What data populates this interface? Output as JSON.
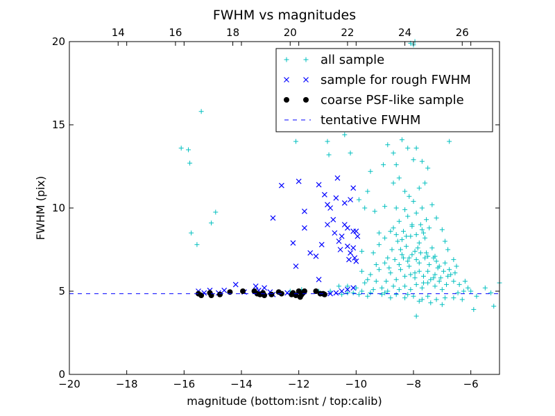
{
  "colors": {
    "all": "#00bfbf",
    "rough": "#0000ff",
    "coarse": "#000000",
    "fwhm_line": "#0000ff"
  },
  "chart_data": {
    "type": "scatter",
    "title": "FWHM vs magnitudes",
    "xlabel": "magnitude (bottom:isnt / top:calib)",
    "ylabel": "FWHM (pix)",
    "xlim": [
      -20,
      -5
    ],
    "ylim": [
      0,
      20
    ],
    "x_ticks": [
      -20,
      -18,
      -16,
      -14,
      -12,
      -10,
      -8,
      -6
    ],
    "x_tick_labels": [
      "−20",
      "−18",
      "−16",
      "−14",
      "−12",
      "−10",
      "−8",
      "−6"
    ],
    "y_ticks": [
      0,
      5,
      10,
      15,
      20
    ],
    "y_tick_labels": [
      "0",
      "5",
      "10",
      "15",
      "20"
    ],
    "top_axis": {
      "offset": 32.3,
      "ticks": [
        14,
        16,
        18,
        20,
        22,
        24,
        26
      ],
      "tick_labels": [
        "14",
        "16",
        "18",
        "20",
        "22",
        "24",
        "26"
      ]
    },
    "legend_position": "top-right",
    "grid": false,
    "tentative_fwhm": 4.85,
    "series": [
      {
        "name": "all sample",
        "marker": "+",
        "points": [
          [
            -16.1,
            13.6
          ],
          [
            -15.85,
            13.5
          ],
          [
            -15.8,
            12.7
          ],
          [
            -15.75,
            8.5
          ],
          [
            -15.55,
            7.8
          ],
          [
            -15.4,
            15.8
          ],
          [
            -15.05,
            9.1
          ],
          [
            -14.9,
            9.75
          ],
          [
            -12.1,
            14.0
          ],
          [
            -11.0,
            14.0
          ],
          [
            -10.95,
            13.2
          ],
          [
            -10.4,
            14.4
          ],
          [
            -10.2,
            13.3
          ],
          [
            -6.75,
            14.0
          ],
          [
            -8.0,
            19.8
          ],
          [
            -8.1,
            19.9
          ],
          [
            -7.95,
            20.0
          ],
          [
            -5.9,
            3.9
          ],
          [
            -5.2,
            4.1
          ],
          [
            -5.0,
            5.5
          ],
          [
            -7.9,
            3.5
          ],
          [
            -12.3,
            5.0
          ],
          [
            -11.9,
            5.1
          ],
          [
            -11.3,
            5.0
          ],
          [
            -10.6,
            5.3
          ],
          [
            -10.3,
            5.3
          ],
          [
            -10.0,
            5.2
          ],
          [
            -10.3,
            4.9
          ],
          [
            -9.9,
            4.8
          ],
          [
            -9.6,
            4.7
          ],
          [
            -9.4,
            5.1
          ],
          [
            -9.1,
            4.8
          ],
          [
            -9.3,
            6.6
          ],
          [
            -9.35,
            9.8
          ],
          [
            -9.0,
            4.9
          ],
          [
            -8.6,
            4.8
          ],
          [
            -8.3,
            4.6
          ],
          [
            -8.0,
            4.7
          ],
          [
            -7.7,
            4.5
          ],
          [
            -7.4,
            4.3
          ],
          [
            -7.0,
            4.2
          ],
          [
            -6.6,
            4.6
          ],
          [
            -6.3,
            4.5
          ],
          [
            -6.0,
            5.0
          ],
          [
            -5.8,
            4.7
          ],
          [
            -5.5,
            5.2
          ],
          [
            -5.3,
            4.9
          ],
          [
            -9.6,
            11.0
          ],
          [
            -9.5,
            12.2
          ],
          [
            -9.9,
            10.5
          ],
          [
            -9.7,
            10.0
          ],
          [
            -9.8,
            7.4
          ],
          [
            -9.8,
            6.2
          ],
          [
            -9.6,
            5.7
          ],
          [
            -9.2,
            8.5
          ],
          [
            -9.0,
            10.1
          ],
          [
            -9.05,
            12.6
          ],
          [
            -8.9,
            13.8
          ],
          [
            -8.7,
            13.3
          ],
          [
            -8.6,
            12.6
          ],
          [
            -8.4,
            14.1
          ],
          [
            -8.2,
            13.6
          ],
          [
            -8.0,
            12.9
          ],
          [
            -7.9,
            13.6
          ],
          [
            -7.7,
            12.8
          ],
          [
            -7.5,
            12.4
          ],
          [
            -8.7,
            11.5
          ],
          [
            -8.5,
            11.8
          ],
          [
            -8.3,
            11.0
          ],
          [
            -8.15,
            10.7
          ],
          [
            -7.8,
            11.2
          ],
          [
            -7.6,
            11.5
          ],
          [
            -7.35,
            10.2
          ],
          [
            -7.2,
            9.4
          ],
          [
            -7.0,
            8.7
          ],
          [
            -6.9,
            8.0
          ],
          [
            -6.8,
            7.5
          ],
          [
            -6.6,
            6.9
          ],
          [
            -6.5,
            6.5
          ],
          [
            -6.7,
            6.0
          ],
          [
            -6.85,
            5.4
          ],
          [
            -7.1,
            5.6
          ],
          [
            -9.1,
            5.2
          ],
          [
            -8.95,
            5.6
          ],
          [
            -8.8,
            6.1
          ],
          [
            -8.6,
            5.7
          ],
          [
            -8.45,
            6.3
          ],
          [
            -8.3,
            5.9
          ],
          [
            -8.15,
            6.5
          ],
          [
            -7.95,
            6.1
          ],
          [
            -7.8,
            6.7
          ],
          [
            -7.65,
            5.5
          ],
          [
            -7.5,
            6.2
          ],
          [
            -7.3,
            5.8
          ],
          [
            -7.15,
            6.4
          ],
          [
            -8.9,
            7.0
          ],
          [
            -8.75,
            7.5
          ],
          [
            -8.55,
            8.0
          ],
          [
            -8.4,
            7.2
          ],
          [
            -8.25,
            7.7
          ],
          [
            -8.1,
            8.3
          ],
          [
            -7.95,
            7.4
          ],
          [
            -7.8,
            7.9
          ],
          [
            -7.65,
            8.5
          ],
          [
            -7.5,
            7.1
          ],
          [
            -7.35,
            7.6
          ],
          [
            -7.2,
            6.8
          ],
          [
            -8.7,
            8.8
          ],
          [
            -8.5,
            9.2
          ],
          [
            -8.35,
            8.6
          ],
          [
            -8.2,
            9.5
          ],
          [
            -8.05,
            8.9
          ],
          [
            -7.9,
            9.7
          ],
          [
            -7.75,
            9.0
          ],
          [
            -7.6,
            8.2
          ],
          [
            -7.45,
            8.8
          ],
          [
            -8.6,
            10.0
          ],
          [
            -8.3,
            9.9
          ],
          [
            -8.0,
            10.4
          ],
          [
            -7.7,
            10.0
          ],
          [
            -9.2,
            6.3
          ],
          [
            -9.0,
            6.7
          ],
          [
            -8.85,
            6.4
          ],
          [
            -8.65,
            6.9
          ],
          [
            -8.5,
            6.6
          ],
          [
            -8.35,
            7.0
          ],
          [
            -8.2,
            6.8
          ],
          [
            -8.05,
            7.2
          ],
          [
            -7.9,
            6.9
          ],
          [
            -7.75,
            7.3
          ],
          [
            -7.6,
            7.0
          ],
          [
            -7.45,
            6.6
          ],
          [
            -7.3,
            7.0
          ],
          [
            -7.1,
            6.5
          ],
          [
            -6.95,
            6.2
          ],
          [
            -6.8,
            5.9
          ],
          [
            -6.6,
            5.6
          ],
          [
            -6.4,
            5.4
          ],
          [
            -6.2,
            5.6
          ],
          [
            -6.1,
            5.2
          ],
          [
            -7.0,
            5.1
          ],
          [
            -7.25,
            5.3
          ],
          [
            -7.5,
            5.5
          ],
          [
            -7.7,
            5.2
          ],
          [
            -7.9,
            5.4
          ],
          [
            -8.1,
            5.1
          ],
          [
            -8.3,
            5.3
          ],
          [
            -8.5,
            5.1
          ],
          [
            -8.7,
            5.3
          ],
          [
            -8.9,
            5.0
          ],
          [
            -9.3,
            5.6
          ],
          [
            -9.5,
            6.0
          ],
          [
            -9.7,
            5.5
          ],
          [
            -9.4,
            7.3
          ],
          [
            -9.2,
            7.8
          ],
          [
            -9.0,
            8.2
          ],
          [
            -8.8,
            8.6
          ],
          [
            -8.1,
            6.0
          ],
          [
            -7.95,
            5.8
          ],
          [
            -7.8,
            6.2
          ],
          [
            -7.65,
            5.9
          ],
          [
            -7.4,
            5.7
          ],
          [
            -7.25,
            6.0
          ],
          [
            -7.05,
            5.8
          ],
          [
            -6.9,
            6.7
          ],
          [
            -6.75,
            6.3
          ],
          [
            -6.55,
            6.1
          ],
          [
            -6.45,
            4.9
          ],
          [
            -6.25,
            5.0
          ],
          [
            -6.9,
            4.6
          ],
          [
            -7.2,
            4.5
          ],
          [
            -7.5,
            4.7
          ],
          [
            -7.8,
            4.4
          ],
          [
            -8.2,
            4.8
          ],
          [
            -8.8,
            4.6
          ],
          [
            -9.5,
            4.9
          ],
          [
            -9.8,
            5.0
          ],
          [
            -10.1,
            4.9
          ],
          [
            -10.5,
            4.8
          ],
          [
            -10.9,
            5.0
          ],
          [
            -8.45,
            7.5
          ],
          [
            -8.15,
            7.0
          ],
          [
            -7.85,
            7.6
          ],
          [
            -7.55,
            7.3
          ],
          [
            -7.25,
            7.1
          ],
          [
            -8.05,
            9.0
          ],
          [
            -7.9,
            8.4
          ],
          [
            -7.7,
            8.7
          ],
          [
            -7.55,
            9.3
          ],
          [
            -8.25,
            8.3
          ],
          [
            -8.6,
            8.4
          ],
          [
            -8.4,
            8.1
          ]
        ]
      },
      {
        "name": "sample for rough FWHM",
        "marker": "x",
        "points": [
          [
            -15.5,
            5.0
          ],
          [
            -15.3,
            4.9
          ],
          [
            -15.1,
            5.05
          ],
          [
            -14.8,
            4.9
          ],
          [
            -14.6,
            5.05
          ],
          [
            -14.2,
            5.4
          ],
          [
            -13.9,
            4.95
          ],
          [
            -13.5,
            5.3
          ],
          [
            -13.4,
            5.05
          ],
          [
            -13.2,
            5.2
          ],
          [
            -13.0,
            4.95
          ],
          [
            -12.9,
            9.4
          ],
          [
            -12.6,
            11.35
          ],
          [
            -12.2,
            7.9
          ],
          [
            -12.1,
            6.5
          ],
          [
            -12.0,
            11.6
          ],
          [
            -11.8,
            9.8
          ],
          [
            -11.8,
            8.8
          ],
          [
            -11.6,
            7.3
          ],
          [
            -11.4,
            7.1
          ],
          [
            -11.3,
            11.4
          ],
          [
            -11.2,
            7.8
          ],
          [
            -11.1,
            10.8
          ],
          [
            -11.0,
            10.2
          ],
          [
            -10.9,
            10.0
          ],
          [
            -10.8,
            9.3
          ],
          [
            -10.7,
            10.6
          ],
          [
            -10.65,
            11.8
          ],
          [
            -10.6,
            8.0
          ],
          [
            -10.5,
            8.3
          ],
          [
            -10.4,
            9.0
          ],
          [
            -10.4,
            10.3
          ],
          [
            -10.3,
            7.7
          ],
          [
            -10.2,
            10.5
          ],
          [
            -10.1,
            11.2
          ],
          [
            -10.0,
            8.6
          ],
          [
            -10.2,
            7.3
          ],
          [
            -11.0,
            9.0
          ],
          [
            -10.75,
            8.5
          ],
          [
            -10.55,
            7.5
          ],
          [
            -10.3,
            8.8
          ],
          [
            -10.1,
            8.6
          ],
          [
            -10.05,
            7.0
          ],
          [
            -10.1,
            7.6
          ],
          [
            -10.0,
            6.8
          ],
          [
            -9.95,
            8.3
          ],
          [
            -10.25,
            6.9
          ],
          [
            -11.3,
            5.7
          ],
          [
            -10.9,
            4.85
          ],
          [
            -10.7,
            4.9
          ],
          [
            -10.5,
            5.0
          ],
          [
            -10.3,
            5.1
          ],
          [
            -10.1,
            5.2
          ],
          [
            -12.4,
            4.9
          ],
          [
            -12.9,
            4.8
          ]
        ]
      },
      {
        "name": "coarse PSF-like sample",
        "marker": "o",
        "points": [
          [
            -15.5,
            4.85
          ],
          [
            -15.4,
            4.75
          ],
          [
            -15.1,
            4.9
          ],
          [
            -15.05,
            4.75
          ],
          [
            -14.75,
            4.8
          ],
          [
            -14.4,
            4.95
          ],
          [
            -13.95,
            5.0
          ],
          [
            -13.55,
            5.0
          ],
          [
            -13.45,
            4.85
          ],
          [
            -13.35,
            4.8
          ],
          [
            -13.25,
            4.9
          ],
          [
            -13.2,
            4.75
          ],
          [
            -12.95,
            4.8
          ],
          [
            -12.7,
            4.95
          ],
          [
            -12.6,
            4.85
          ],
          [
            -12.25,
            4.8
          ],
          [
            -12.2,
            4.9
          ],
          [
            -12.1,
            4.75
          ],
          [
            -12.0,
            5.0
          ],
          [
            -11.95,
            4.65
          ],
          [
            -11.9,
            4.8
          ],
          [
            -11.85,
            4.9
          ],
          [
            -11.8,
            5.0
          ],
          [
            -11.4,
            5.0
          ],
          [
            -11.25,
            4.85
          ],
          [
            -11.15,
            4.85
          ],
          [
            -11.1,
            4.8
          ]
        ]
      },
      {
        "name": "tentative FWHM",
        "marker": "dashed-line",
        "y": 4.85
      }
    ]
  }
}
